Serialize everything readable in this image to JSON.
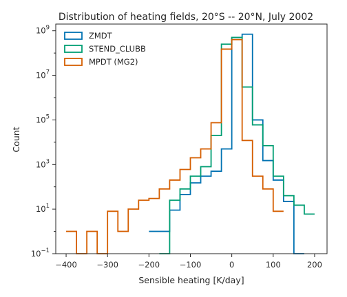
{
  "chart_data": {
    "type": "histogram-step",
    "title": "Distribution of heating fields, 20°S -- 20°N, July 2002",
    "xlabel": "Sensible heating [K/day]",
    "ylabel": "Count",
    "xlim": [
      -425,
      230
    ],
    "ylim_exp": [
      -1,
      9.3
    ],
    "yscale": "log",
    "legend_position": "top-left",
    "x_ticks": [
      -400,
      -300,
      -200,
      -100,
      0,
      100,
      200
    ],
    "x_tick_labels": [
      "−400",
      "−300",
      "−200",
      "−100",
      "0",
      "100",
      "200"
    ],
    "y_ticks_exp": [
      -1,
      1,
      3,
      5,
      7,
      9
    ],
    "y_tick_labels": [
      {
        "base": "10",
        "exp": "−1"
      },
      {
        "base": "10",
        "exp": "1"
      },
      {
        "base": "10",
        "exp": "3"
      },
      {
        "base": "10",
        "exp": "5"
      },
      {
        "base": "10",
        "exp": "7"
      },
      {
        "base": "10",
        "exp": "9"
      }
    ],
    "bin_width": 25,
    "series": [
      {
        "name": "ZMDT",
        "color": "#0072b2",
        "bin_start": -200,
        "counts": [
          1,
          1,
          9,
          45,
          150,
          300,
          500,
          5000,
          500000000,
          700000000,
          100000,
          1500,
          200,
          22,
          0.1
        ]
      },
      {
        "name": "STEND_CLUBB",
        "color": "#009e73",
        "bin_start": -175,
        "counts": [
          0.1,
          25,
          80,
          300,
          800,
          20000,
          250000000,
          500000000,
          3000000,
          60000,
          7000,
          300,
          40,
          15,
          6
        ]
      },
      {
        "name": "MPDT (MG2)",
        "color": "#d55e00",
        "bin_start": -400,
        "counts": [
          1,
          0.1,
          1,
          0.1,
          8,
          1,
          10,
          25,
          30,
          80,
          200,
          600,
          2000,
          5000,
          75000,
          150000000,
          400000000,
          12000,
          300,
          80,
          8
        ]
      }
    ]
  }
}
